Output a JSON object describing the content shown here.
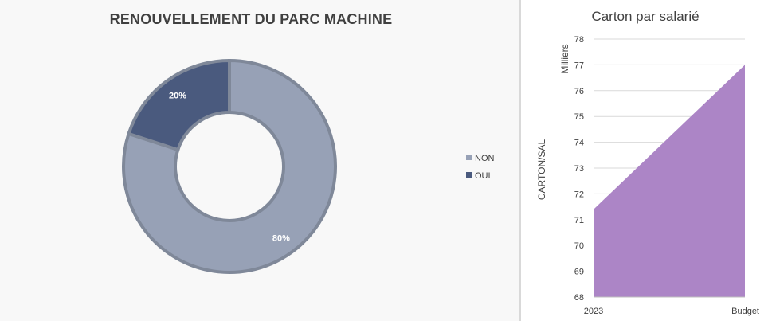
{
  "chart_data": [
    {
      "type": "pie",
      "title": "RENOUVELLEMENT DU PARC MACHINE",
      "categories": [
        "NON",
        "OUI"
      ],
      "values": [
        80,
        20
      ],
      "value_labels": [
        "80%",
        "20%"
      ],
      "colors": [
        "#97a1b6",
        "#4a5a7e"
      ],
      "legend": "right"
    },
    {
      "type": "area",
      "title": "Carton par salarié",
      "categories": [
        "2023",
        "Budget"
      ],
      "values": [
        71.4,
        77
      ],
      "ylabel": "CARTON/SAL",
      "y_unit_label": "Milliers",
      "ylim": [
        68,
        78
      ],
      "yticks": [
        "68",
        "69",
        "70",
        "71",
        "72",
        "73",
        "74",
        "75",
        "76",
        "77",
        "78"
      ],
      "grid": true,
      "color": "#ac85c6"
    }
  ]
}
